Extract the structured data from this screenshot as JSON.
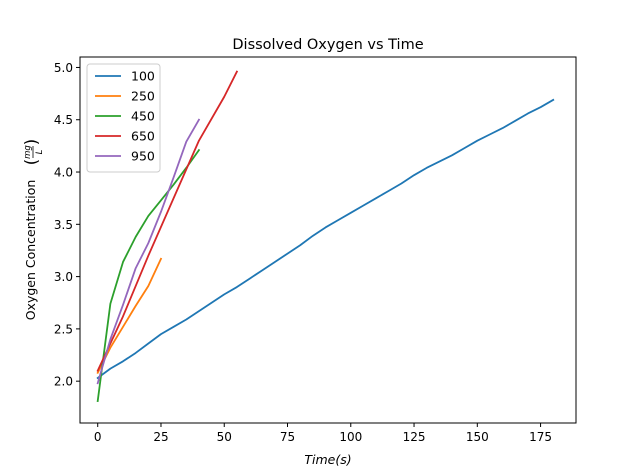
{
  "chart_data": {
    "type": "line",
    "title": "Dissolved Oxygen vs Time",
    "xlabel": "Time(s)",
    "ylabel_prefix": "Oxygen Concentration",
    "ylabel_unit": {
      "numerator": "mg",
      "denominator": "L"
    },
    "xlim": [
      -7,
      189
    ],
    "ylim": [
      1.6,
      5.1
    ],
    "xticks": [
      0,
      25,
      50,
      75,
      100,
      125,
      150,
      175
    ],
    "yticks": [
      2.0,
      2.5,
      3.0,
      3.5,
      4.0,
      4.5,
      5.0
    ],
    "ytick_labels": [
      "2.0",
      "2.5",
      "3.0",
      "3.5",
      "4.0",
      "4.5",
      "5.0"
    ],
    "grid": false,
    "legend_position": "top-left",
    "series": [
      {
        "name": "100",
        "color": "#1f77b4",
        "points": [
          [
            0,
            2.03
          ],
          [
            5,
            2.12
          ],
          [
            10,
            2.19
          ],
          [
            15,
            2.27
          ],
          [
            20,
            2.36
          ],
          [
            25,
            2.45
          ],
          [
            30,
            2.52
          ],
          [
            35,
            2.59
          ],
          [
            40,
            2.67
          ],
          [
            45,
            2.75
          ],
          [
            50,
            2.83
          ],
          [
            55,
            2.9
          ],
          [
            60,
            2.98
          ],
          [
            65,
            3.06
          ],
          [
            70,
            3.14
          ],
          [
            75,
            3.22
          ],
          [
            80,
            3.3
          ],
          [
            85,
            3.39
          ],
          [
            90,
            3.47
          ],
          [
            95,
            3.54
          ],
          [
            100,
            3.61
          ],
          [
            105,
            3.68
          ],
          [
            110,
            3.75
          ],
          [
            115,
            3.82
          ],
          [
            120,
            3.89
          ],
          [
            125,
            3.97
          ],
          [
            130,
            4.04
          ],
          [
            135,
            4.1
          ],
          [
            140,
            4.16
          ],
          [
            145,
            4.23
          ],
          [
            150,
            4.3
          ],
          [
            155,
            4.36
          ],
          [
            160,
            4.42
          ],
          [
            165,
            4.49
          ],
          [
            170,
            4.56
          ],
          [
            175,
            4.62
          ],
          [
            180,
            4.69
          ]
        ]
      },
      {
        "name": "250",
        "color": "#ff7f0e",
        "points": [
          [
            0,
            2.08
          ],
          [
            5,
            2.32
          ],
          [
            10,
            2.52
          ],
          [
            15,
            2.72
          ],
          [
            20,
            2.91
          ],
          [
            25,
            3.17
          ]
        ]
      },
      {
        "name": "450",
        "color": "#2ca02c",
        "points": [
          [
            0,
            1.81
          ],
          [
            5,
            2.74
          ],
          [
            10,
            3.14
          ],
          [
            15,
            3.38
          ],
          [
            20,
            3.58
          ],
          [
            25,
            3.73
          ],
          [
            30,
            3.88
          ],
          [
            35,
            4.04
          ],
          [
            40,
            4.21
          ]
        ]
      },
      {
        "name": "650",
        "color": "#d62728",
        "points": [
          [
            0,
            2.1
          ],
          [
            10,
            2.62
          ],
          [
            20,
            3.2
          ],
          [
            30,
            3.75
          ],
          [
            40,
            4.3
          ],
          [
            50,
            4.72
          ],
          [
            55,
            4.96
          ]
        ]
      },
      {
        "name": "950",
        "color": "#9467bd",
        "points": [
          [
            0,
            1.98
          ],
          [
            5,
            2.4
          ],
          [
            10,
            2.73
          ],
          [
            15,
            3.08
          ],
          [
            20,
            3.32
          ],
          [
            25,
            3.62
          ],
          [
            30,
            3.95
          ],
          [
            35,
            4.29
          ],
          [
            40,
            4.5
          ]
        ]
      }
    ]
  }
}
